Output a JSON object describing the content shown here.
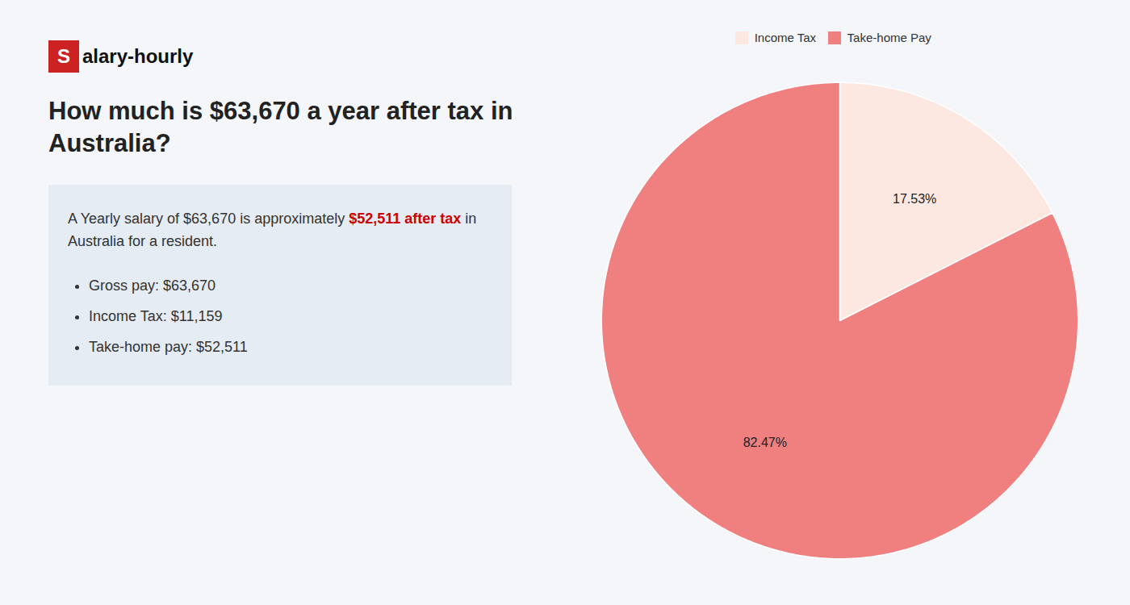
{
  "chart_data": {
    "type": "pie",
    "logo": {
      "mark": "S",
      "text": "alary-hourly",
      "color": "#cc2222"
    },
    "title": [
      "How much is $63,670 a year after tax in",
      "Australia?"
    ],
    "body": [
      [
        {
          "text": "A Yearly salary of $63,670 is approximately "
        },
        {
          "text": "$52,511 after tax",
          "color": "#cc0000"
        },
        {
          "text": " in"
        }
      ],
      [
        {
          "text": "Australia for a resident."
        }
      ]
    ],
    "bullets": [
      "Gross pay: $63,670",
      "Income Tax: $11,159",
      "Take-home pay: $52,511"
    ],
    "categories": [
      "Income Tax",
      "Take-home Pay"
    ],
    "values": [
      17.53,
      82.47
    ],
    "value_labels": [
      "17.53%",
      "82.47%"
    ],
    "colors": [
      "#fce8e0",
      "#f08080"
    ],
    "data_labels": true,
    "legend": "top"
  }
}
